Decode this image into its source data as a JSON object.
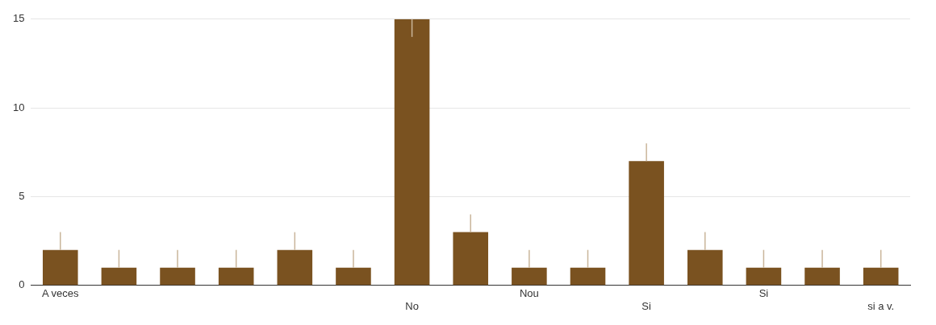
{
  "chart_data": {
    "type": "bar",
    "categories": [
      "A veces",
      null,
      null,
      null,
      null,
      null,
      "No",
      null,
      "Nou",
      null,
      "Si",
      null,
      "Si",
      null,
      "si a v."
    ],
    "values": [
      2,
      1,
      1,
      1,
      2,
      1,
      15,
      3,
      1,
      1,
      7,
      2,
      1,
      1,
      1
    ],
    "errors": [
      [
        2,
        3
      ],
      [
        1,
        2
      ],
      [
        1,
        2
      ],
      [
        1,
        2
      ],
      [
        2,
        3
      ],
      [
        1,
        2
      ],
      [
        14,
        15
      ],
      [
        3,
        4
      ],
      [
        1,
        2
      ],
      [
        1,
        2
      ],
      [
        7,
        8
      ],
      [
        2,
        3
      ],
      [
        1,
        2
      ],
      [
        1,
        2
      ],
      [
        1,
        2
      ]
    ],
    "color": "#7a5220",
    "ylim": [
      0,
      15
    ],
    "yticks": [
      0,
      5,
      10,
      15
    ],
    "grid": "y",
    "legend": false
  }
}
